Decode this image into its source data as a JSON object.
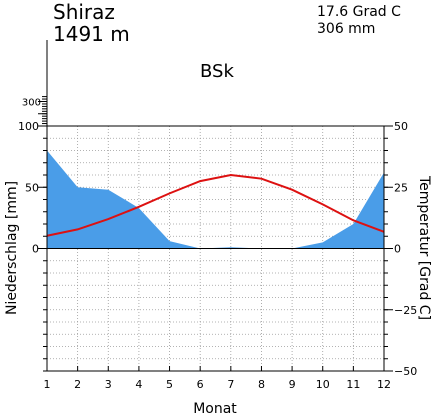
{
  "header": {
    "station": "Shiraz",
    "elevation": "1491 m",
    "mean_temperature": "17.6 Grad C",
    "annual_precipitation": "306 mm",
    "climate_class": "BSk"
  },
  "chart_data": {
    "type": "line",
    "title": "",
    "xlabel": "Monat",
    "ylabel_left": "Niederschlag [mm]",
    "ylabel_right": "Temperatur [Grad C]",
    "x": [
      1,
      2,
      3,
      4,
      5,
      6,
      7,
      8,
      9,
      10,
      11,
      12
    ],
    "x_ticks": [
      "1",
      "2",
      "3",
      "4",
      "5",
      "6",
      "7",
      "8",
      "9",
      "10",
      "11",
      "12"
    ],
    "left_axis": {
      "ylim": [
        -100,
        100
      ],
      "ticks": [
        0,
        50,
        100
      ],
      "tick_labels": [
        "0",
        "50",
        "100"
      ],
      "extended_ticks": [
        100,
        200,
        300
      ],
      "extended_tick_labels": [
        "300"
      ]
    },
    "right_axis": {
      "ylim": [
        -50,
        50
      ],
      "ticks": [
        -50,
        -25,
        0,
        25,
        50
      ],
      "tick_labels": [
        "−50",
        "−25",
        "0",
        "25",
        "50"
      ]
    },
    "grid": true,
    "series": [
      {
        "kind": "precipitation-area",
        "axis": "left",
        "color": "#4a9de8",
        "values": [
          80,
          50,
          48,
          33,
          6,
          0,
          1,
          0,
          0,
          5,
          20,
          62
        ]
      },
      {
        "kind": "temperature-line",
        "axis": "right",
        "color": "#dd1111",
        "values": [
          5.2,
          7.8,
          12,
          17,
          22.5,
          27.5,
          30,
          28.5,
          24,
          18,
          11.5,
          6.8
        ]
      }
    ]
  }
}
